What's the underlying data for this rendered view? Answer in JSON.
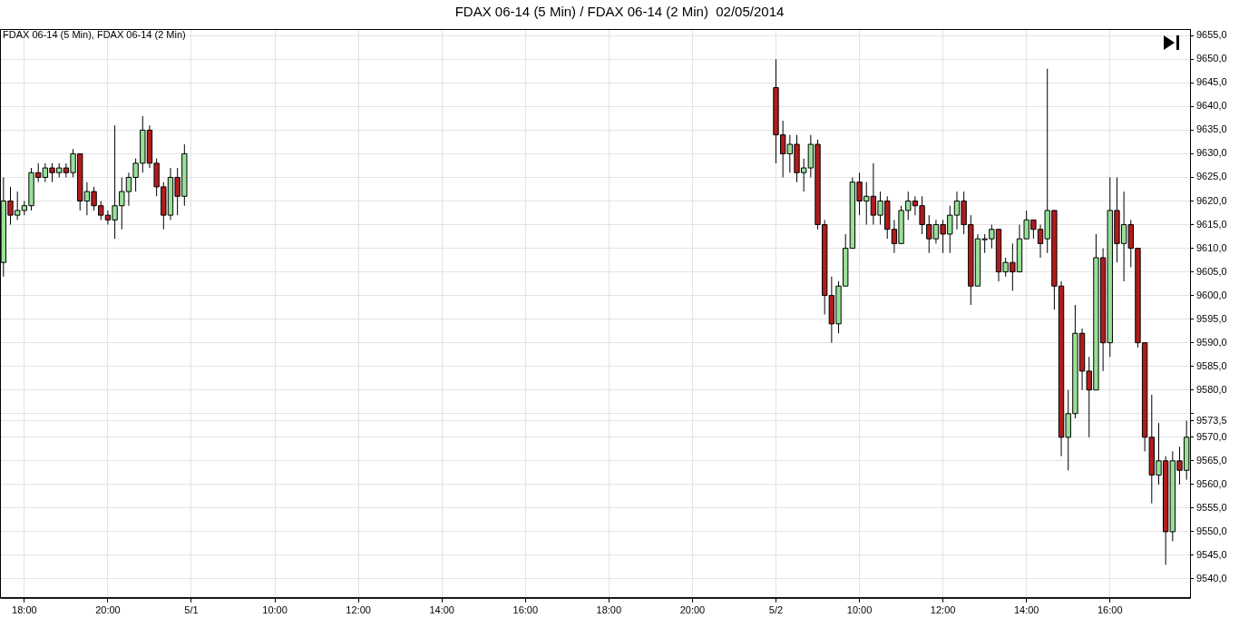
{
  "chart_data": {
    "type": "candlestick",
    "title": "FDAX 06-14 (5 Min) / FDAX 06-14 (2 Min)  02/05/2014",
    "annotations": [
      "FDAX 06-14 (5 Min), FDAX 06-14 (2 Min)"
    ],
    "categories": [
      null,
      null,
      null,
      "18:00",
      null,
      null,
      null,
      null,
      null,
      null,
      null,
      null,
      null,
      null,
      null,
      "20:00",
      null,
      null,
      null,
      null,
      null,
      null,
      null,
      null,
      null,
      null,
      null,
      "5/1",
      null,
      null,
      null,
      null,
      null,
      null,
      null,
      null,
      null,
      null,
      null,
      "10:00",
      null,
      null,
      null,
      null,
      null,
      null,
      null,
      null,
      null,
      null,
      null,
      "12:00",
      null,
      null,
      null,
      null,
      null,
      null,
      null,
      null,
      null,
      null,
      null,
      "14:00",
      null,
      null,
      null,
      null,
      null,
      null,
      null,
      null,
      null,
      null,
      null,
      "16:00",
      null,
      null,
      null,
      null,
      null,
      null,
      null,
      null,
      null,
      null,
      null,
      "18:00",
      null,
      null,
      null,
      null,
      null,
      null,
      null,
      null,
      null,
      null,
      null,
      "20:00",
      null,
      null,
      null,
      null,
      null,
      null,
      null,
      null,
      null,
      null,
      null,
      "5/2",
      null,
      null,
      null,
      null,
      null,
      null,
      null,
      null,
      null,
      null,
      null,
      "10:00",
      null,
      null,
      null,
      null,
      null,
      null,
      null,
      null,
      null,
      null,
      null,
      "12:00",
      null,
      null,
      null,
      null,
      null,
      null,
      null,
      null,
      null,
      null,
      null,
      "14:00",
      null,
      null,
      null,
      null,
      null,
      null,
      null,
      null,
      null,
      null,
      null,
      "16:00",
      null,
      null,
      null,
      null,
      null,
      null,
      null,
      null,
      null,
      null,
      null
    ],
    "ohlc": [
      [
        9607,
        9625,
        9604,
        9620
      ],
      [
        9620,
        9623,
        9615,
        9617
      ],
      [
        9617,
        9622,
        9616,
        9618
      ],
      [
        9618,
        9620,
        9617,
        9619
      ],
      [
        9619,
        9627,
        9618,
        9626
      ],
      [
        9626,
        9628,
        9624,
        9625
      ],
      [
        9625,
        9628,
        9624,
        9627
      ],
      [
        9627,
        9628,
        9624,
        9626
      ],
      [
        9626,
        9628,
        9625,
        9627
      ],
      [
        9627,
        9628,
        9625,
        9626
      ],
      [
        9626,
        9631,
        9625,
        9630
      ],
      [
        9630,
        9630,
        9618,
        9620
      ],
      [
        9620,
        9624,
        9617,
        9622
      ],
      [
        9622,
        9623,
        9618,
        9619
      ],
      [
        9619,
        9620,
        9616,
        9617
      ],
      [
        9617,
        9618,
        9615,
        9616
      ],
      [
        9616,
        9636,
        9612,
        9619
      ],
      [
        9619,
        9625,
        9614,
        9622
      ],
      [
        9622,
        9626,
        9619,
        9625
      ],
      [
        9625,
        9629,
        9622,
        9628
      ],
      [
        9628,
        9638,
        9626,
        9635
      ],
      [
        9635,
        9636,
        9627,
        9628
      ],
      [
        9628,
        9629,
        9621,
        9623
      ],
      [
        9623,
        9624,
        9614,
        9617
      ],
      [
        9617,
        9627,
        9616,
        9625
      ],
      [
        9625,
        9627,
        9617,
        9621
      ],
      [
        9621,
        9632,
        9619,
        9630
      ],
      null,
      null,
      null,
      null,
      null,
      null,
      null,
      null,
      null,
      null,
      null,
      null,
      null,
      null,
      null,
      null,
      null,
      null,
      null,
      null,
      null,
      null,
      null,
      null,
      null,
      null,
      null,
      null,
      null,
      null,
      null,
      null,
      null,
      null,
      null,
      null,
      null,
      null,
      null,
      null,
      null,
      null,
      null,
      null,
      null,
      null,
      null,
      null,
      null,
      null,
      null,
      null,
      null,
      null,
      null,
      null,
      null,
      null,
      null,
      null,
      null,
      null,
      null,
      null,
      null,
      null,
      null,
      null,
      null,
      null,
      null,
      null,
      null,
      null,
      null,
      null,
      null,
      null,
      null,
      null,
      null,
      null,
      null,
      null,
      [
        9644,
        9650,
        9628,
        9634
      ],
      [
        9634,
        9637,
        9625,
        9630
      ],
      [
        9630,
        9634,
        9626,
        9632
      ],
      [
        9632,
        9634,
        9624,
        9626
      ],
      [
        9626,
        9629,
        9622,
        9627
      ],
      [
        9627,
        9634,
        9625,
        9632
      ],
      [
        9632,
        9633,
        9614,
        9615
      ],
      [
        9615,
        9616,
        9596,
        9600
      ],
      [
        9600,
        9604,
        9590,
        9594
      ],
      [
        9594,
        9603,
        9592,
        9602
      ],
      [
        9602,
        9613,
        9602,
        9610
      ],
      [
        9610,
        9625,
        9610,
        9624
      ],
      [
        9624,
        9626,
        9617,
        9620
      ],
      [
        9620,
        9624,
        9615,
        9621
      ],
      [
        9621,
        9628,
        9615,
        9617
      ],
      [
        9617,
        9622,
        9615,
        9620
      ],
      [
        9620,
        9621,
        9612,
        9614
      ],
      [
        9614,
        9616,
        9609,
        9611
      ],
      [
        9611,
        9619,
        9611,
        9618
      ],
      [
        9618,
        9622,
        9616,
        9620
      ],
      [
        9620,
        9621,
        9617,
        9619
      ],
      [
        9619,
        9621,
        9613,
        9615
      ],
      [
        9615,
        9617,
        9609,
        9612
      ],
      [
        9612,
        9616,
        9611,
        9615
      ],
      [
        9615,
        9616,
        9609,
        9613
      ],
      [
        9613,
        9619,
        9609,
        9617
      ],
      [
        9617,
        9622,
        9614,
        9620
      ],
      [
        9620,
        9622,
        9613,
        9615
      ],
      [
        9615,
        9617,
        9598,
        9602
      ],
      [
        9602,
        9613,
        9602,
        9612
      ],
      [
        9612,
        9613,
        9609,
        9612
      ],
      [
        9612,
        9615,
        9610,
        9614
      ],
      [
        9614,
        9614,
        9603,
        9605
      ],
      [
        9605,
        9608,
        9604,
        9607
      ],
      [
        9607,
        9611,
        9601,
        9605
      ],
      [
        9605,
        9615,
        9605,
        9612
      ],
      [
        9612,
        9618,
        9612,
        9616
      ],
      [
        9616,
        9616,
        9612,
        9614
      ],
      [
        9614,
        9615,
        9608,
        9611
      ],
      [
        9612,
        9648,
        9609,
        9618
      ],
      [
        9618,
        9618,
        9597,
        9602
      ],
      [
        9602,
        9603,
        9566,
        9570
      ],
      [
        9570,
        9580,
        9563,
        9575
      ],
      [
        9575,
        9598,
        9574,
        9592
      ],
      [
        9592,
        9593,
        9580,
        9584
      ],
      [
        9584,
        9587,
        9570,
        9580
      ],
      [
        9580,
        9613,
        9580,
        9608
      ],
      [
        9608,
        9610,
        9584,
        9590
      ],
      [
        9590,
        9625,
        9587,
        9618
      ],
      [
        9618,
        9625,
        9607,
        9611
      ],
      [
        9611,
        9622,
        9603,
        9615
      ],
      [
        9615,
        9616,
        9606,
        9610
      ],
      [
        9610,
        9610,
        9589,
        9590
      ],
      [
        9590,
        9590,
        9567,
        9570
      ],
      [
        9570,
        9579,
        9556,
        9562
      ],
      [
        9562,
        9573,
        9560,
        9565
      ],
      [
        9565,
        9566,
        9543,
        9550
      ],
      [
        9550,
        9567,
        9548,
        9565
      ],
      [
        9565,
        9568,
        9560,
        9563
      ],
      [
        9563,
        9573.5,
        9561,
        9570
      ]
    ],
    "ylim": [
      9536,
      9656.4
    ],
    "yticks": [
      {
        "value": 9540,
        "label": "9540,0"
      },
      {
        "value": 9545,
        "label": "9545,0"
      },
      {
        "value": 9550,
        "label": "9550,0"
      },
      {
        "value": 9555,
        "label": "9555,0"
      },
      {
        "value": 9560,
        "label": "9560,0"
      },
      {
        "value": 9565,
        "label": "9565,0"
      },
      {
        "value": 9570,
        "label": "9570,0"
      },
      {
        "value": 9573.5,
        "label": "9573,5"
      },
      {
        "value": 9575,
        "label": null
      },
      {
        "value": 9580,
        "label": "9580,0"
      },
      {
        "value": 9585,
        "label": "9585,0"
      },
      {
        "value": 9590,
        "label": "9590,0"
      },
      {
        "value": 9595,
        "label": "9595,0"
      },
      {
        "value": 9600,
        "label": "9600,0"
      },
      {
        "value": 9605,
        "label": "9605,0"
      },
      {
        "value": 9610,
        "label": "9610,0"
      },
      {
        "value": 9615,
        "label": "9615,0"
      },
      {
        "value": 9620,
        "label": "9620,0"
      },
      {
        "value": 9625,
        "label": "9625,0"
      },
      {
        "value": 9630,
        "label": "9630,0"
      },
      {
        "value": 9635,
        "label": "9635,0"
      },
      {
        "value": 9640,
        "label": "9640,0"
      },
      {
        "value": 9645,
        "label": "9645,0"
      },
      {
        "value": 9650,
        "label": "9650,0"
      },
      {
        "value": 9655,
        "label": "9655,0"
      }
    ],
    "grid": true,
    "legend": false
  }
}
